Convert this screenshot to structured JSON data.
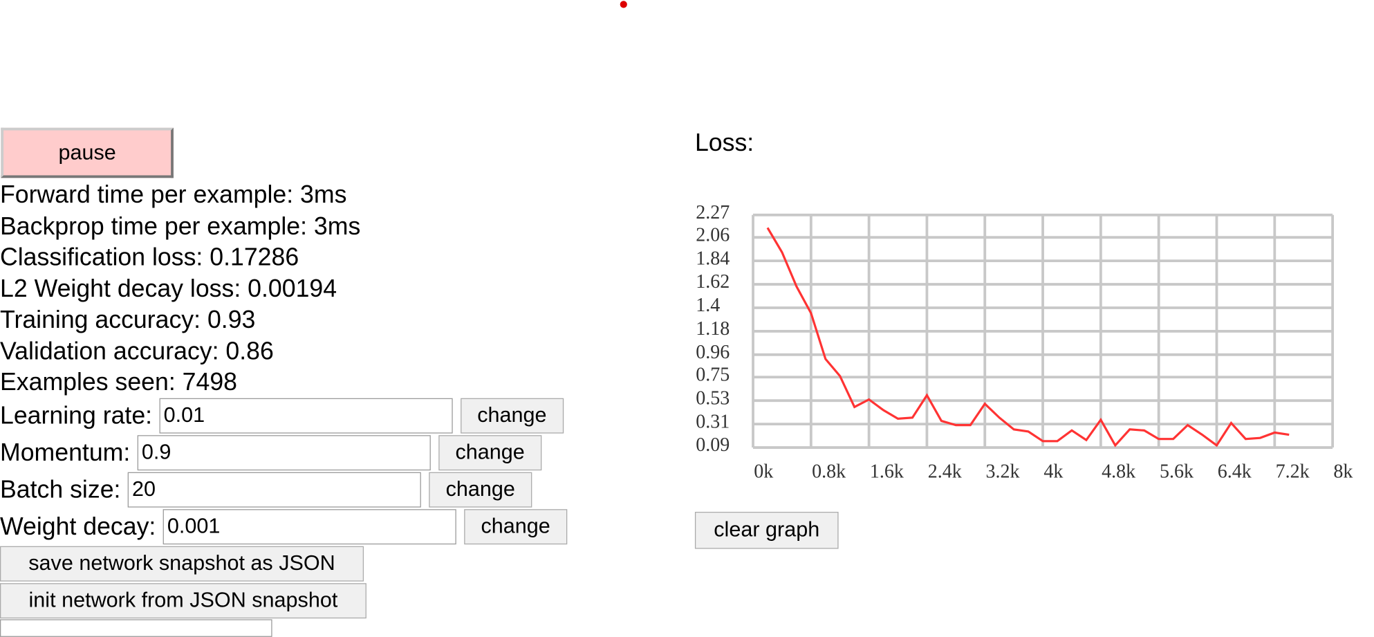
{
  "pause_button": "pause",
  "stats": [
    "Forward time per example: 3ms",
    "Backprop time per example: 3ms",
    "Classification loss: 0.17286",
    "L2 Weight decay loss: 0.00194",
    "Training accuracy: 0.93",
    "Validation accuracy: 0.86",
    "Examples seen: 7498"
  ],
  "controls": [
    {
      "label": "Learning rate:",
      "value": "0.01",
      "button": "change"
    },
    {
      "label": "Momentum:",
      "value": "0.9",
      "button": "change"
    },
    {
      "label": "Batch size:",
      "value": "20",
      "button": "change"
    },
    {
      "label": "Weight decay:",
      "value": "0.001",
      "button": "change"
    }
  ],
  "buttons": [
    "save network snapshot as JSON",
    "init network from JSON snapshot"
  ],
  "clear_button": "clear graph",
  "chart_data": {
    "type": "line",
    "title": "Loss:",
    "color": "#ff3333",
    "x": [
      200,
      400,
      600,
      800,
      1000,
      1200,
      1400,
      1600,
      1800,
      2000,
      2200,
      2400,
      2600,
      2800,
      3000,
      3200,
      3400,
      3600,
      3800,
      4000,
      4200,
      4400,
      4600,
      4800,
      5000,
      5200,
      5400,
      5600,
      5800,
      6000,
      6200,
      6400,
      6600,
      6800,
      7000,
      7200,
      7400
    ],
    "values": [
      2.15,
      1.92,
      1.6,
      1.35,
      0.92,
      0.76,
      0.47,
      0.54,
      0.44,
      0.36,
      0.37,
      0.58,
      0.34,
      0.3,
      0.3,
      0.5,
      0.37,
      0.26,
      0.24,
      0.15,
      0.15,
      0.25,
      0.16,
      0.35,
      0.11,
      0.26,
      0.25,
      0.17,
      0.17,
      0.3,
      0.21,
      0.11,
      0.32,
      0.17,
      0.18,
      0.23,
      0.21
    ],
    "xlim": [
      0,
      8000
    ],
    "xticks": [
      {
        "value": 0,
        "label": "0k"
      },
      {
        "value": 800,
        "label": "0.8k"
      },
      {
        "value": 1600,
        "label": "1.6k"
      },
      {
        "value": 2400,
        "label": "2.4k"
      },
      {
        "value": 3200,
        "label": "3.2k"
      },
      {
        "value": 4000,
        "label": "4k"
      },
      {
        "value": 4800,
        "label": "4.8k"
      },
      {
        "value": 5600,
        "label": "5.6k"
      },
      {
        "value": 6400,
        "label": "6.4k"
      },
      {
        "value": 7200,
        "label": "7.2k"
      },
      {
        "value": 8000,
        "label": "8k"
      }
    ],
    "ylim": [
      0.09,
      2.27
    ],
    "yticks": [
      0.09,
      0.31,
      0.53,
      0.75,
      0.96,
      1.18,
      1.4,
      1.62,
      1.84,
      2.06,
      2.27
    ],
    "grid": true
  }
}
